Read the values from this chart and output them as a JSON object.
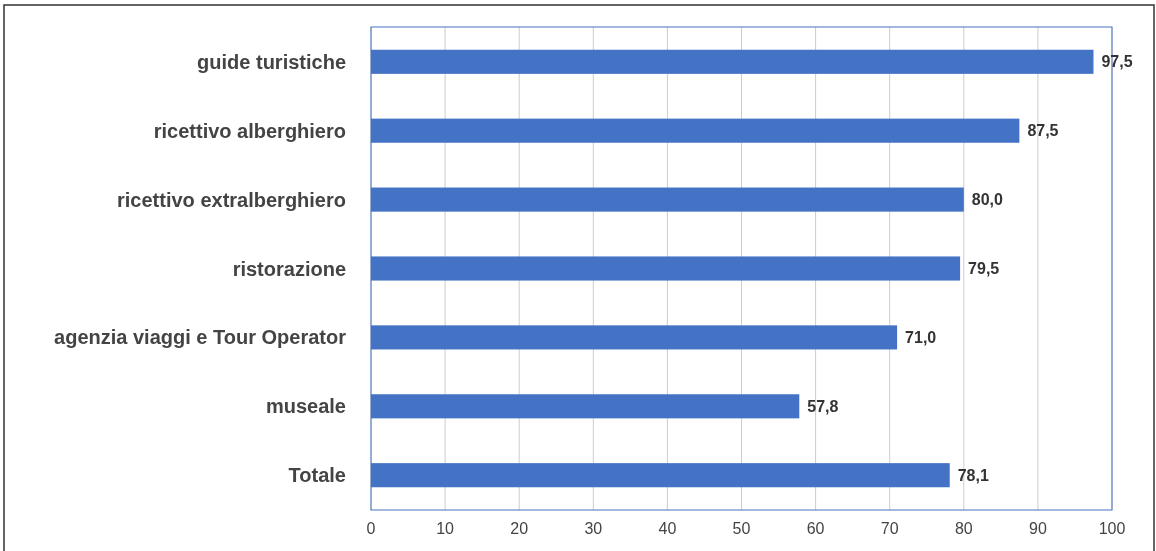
{
  "chart_data": {
    "type": "bar",
    "orientation": "horizontal",
    "categories": [
      "guide turistiche",
      "ricettivo alberghiero",
      "ricettivo extralberghiero",
      "ristorazione",
      "agenzia viaggi e Tour Operator",
      "museale",
      "Totale"
    ],
    "values": [
      97.5,
      87.5,
      80.0,
      79.5,
      71.0,
      57.8,
      78.1
    ],
    "value_labels": [
      "97,5",
      "87,5",
      "80,0",
      "79,5",
      "71,0",
      "57,8",
      "78,1"
    ],
    "color": "#4472c4",
    "xlim": [
      0,
      100
    ],
    "xticks": [
      0,
      10,
      20,
      30,
      40,
      50,
      60,
      70,
      80,
      90,
      100
    ],
    "grid": "x"
  }
}
